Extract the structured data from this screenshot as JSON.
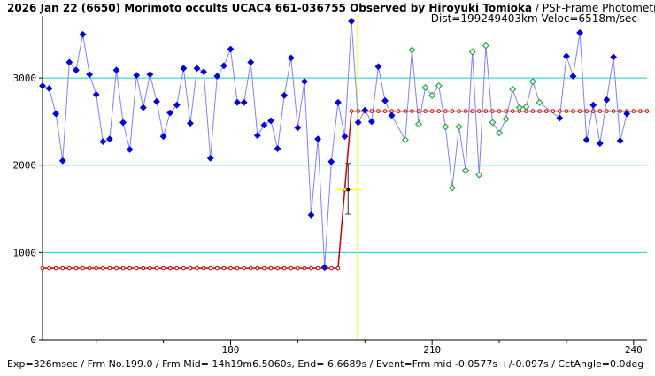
{
  "header": {
    "title": "2026 Jan 22 (6650) Morimoto occults UCAC4 661-036755 Observed by Hiroyuki Tomioka",
    "method": " / PSF-Frame Photometry /",
    "subtitle": "Dist=199249403km Veloc=6518m/sec"
  },
  "footer": {
    "text": "Exp=326msec / Frm No.199.0 / Frm Mid= 14h19m6.5060s, End= 6.6689s / Event=Frm mid -0.0577s +/-0.097s / CctAngle=0.0deg"
  },
  "colors": {
    "blue_points": "#0000dd",
    "blue_line": "#8080ff",
    "green_points": "#22aa44",
    "model_red": "#cc0000",
    "grid_cyan": "#00d8d8",
    "event_yellow": "#ffff00"
  },
  "chart_data": {
    "type": "scatter",
    "xlim": [
      152,
      242
    ],
    "ylim": [
      0,
      3650
    ],
    "x_ticks": [
      180,
      210,
      240
    ],
    "x_minor_ticks": [
      160,
      170,
      190,
      200,
      220,
      230
    ],
    "y_ticks": [
      0,
      1000,
      2000,
      3000
    ],
    "grid": "horizontal",
    "event_line_x": 198.9,
    "event_marker": {
      "x": 197.5,
      "y": 1720,
      "error_x": [
        195.5,
        199.5
      ],
      "error_y": [
        1440,
        2020
      ]
    },
    "series": [
      {
        "style": "blue-points",
        "x": [
          152,
          153,
          154,
          155,
          156,
          157,
          158,
          159,
          160,
          161,
          162,
          163,
          164,
          165,
          166,
          167,
          168,
          169,
          170,
          171,
          172,
          173,
          174,
          175,
          176,
          177,
          178,
          179,
          180,
          181,
          182,
          183,
          184,
          185,
          186,
          187,
          188,
          189,
          190,
          191,
          192,
          193,
          194,
          195,
          196,
          197,
          198,
          199,
          200,
          201,
          202,
          203,
          204,
          205,
          206,
          207,
          208,
          209,
          210,
          211,
          212,
          213,
          214,
          215,
          216,
          217,
          218,
          219,
          220,
          221,
          222,
          223,
          224,
          225,
          226,
          227,
          228,
          229,
          230,
          231,
          232,
          233,
          234,
          235,
          236,
          237,
          238,
          239,
          240,
          241
        ],
        "y": [
          2910,
          2880,
          2590,
          2050,
          3180,
          3090,
          3500,
          3040,
          2810,
          2270,
          2300,
          3090,
          2490,
          2180,
          3030,
          2660,
          3040,
          2730,
          2330,
          2600,
          2690,
          3110,
          2480,
          3110,
          3070,
          2080,
          3020,
          3140,
          3330,
          2720,
          2720,
          3180,
          2340,
          2460,
          2510,
          2190,
          2800,
          3230,
          2430,
          2960,
          1430,
          2300,
          830,
          2040,
          2720,
          2330,
          3650,
          2490,
          2630,
          2500,
          3130,
          2740,
          2570,
          null,
          null,
          null,
          null,
          null,
          null,
          null,
          null,
          null,
          null,
          null,
          null,
          null,
          null,
          null,
          null,
          null,
          null,
          null,
          null,
          null,
          null,
          null,
          null,
          2540,
          3250,
          3020,
          3520,
          2290,
          2690,
          2250,
          2750,
          3240,
          2280,
          2590,
          null,
          null
        ]
      },
      {
        "style": "green-points",
        "x": [
          206,
          207,
          208,
          209,
          210,
          211,
          212,
          213,
          214,
          215,
          216,
          217,
          218,
          219,
          220,
          221,
          222,
          223,
          224,
          225,
          226,
          227,
          228
        ],
        "y": [
          2290,
          3320,
          2470,
          2890,
          2800,
          2910,
          2440,
          1740,
          2440,
          1940,
          3300,
          1890,
          3370,
          2490,
          2370,
          2530,
          2870,
          2660,
          2670,
          2960,
          2720,
          null,
          null
        ]
      },
      {
        "style": "model-red",
        "x": [
          152,
          196,
          198,
          242
        ],
        "y": [
          820,
          820,
          2620,
          2620
        ]
      }
    ]
  }
}
